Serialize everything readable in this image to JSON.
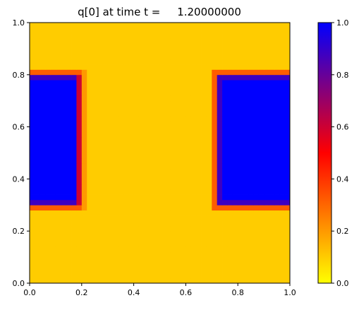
{
  "chart_data": {
    "type": "heatmap",
    "title": "q[0] at time t =     1.20000000",
    "xlabel": "",
    "ylabel": "",
    "xlim": [
      0.0,
      1.0
    ],
    "ylim": [
      0.0,
      1.0
    ],
    "xticks": [
      "0.0",
      "0.2",
      "0.4",
      "0.6",
      "0.8",
      "1.0"
    ],
    "yticks": [
      "0.0",
      "0.2",
      "0.4",
      "0.6",
      "0.8",
      "1.0"
    ],
    "grid": false,
    "colorbar": {
      "range": [
        0.0,
        1.0
      ],
      "ticks": [
        "0.0",
        "0.2",
        "0.4",
        "0.6",
        "0.8",
        "1.0"
      ],
      "colors": [
        "#ffff00",
        "#ff8000",
        "#ff0000",
        "#800080",
        "#0000ff"
      ]
    },
    "grid_size": [
      50,
      50
    ],
    "background_value": 0.1,
    "regions": [
      {
        "name": "left block",
        "x": [
          0.0,
          0.17
        ],
        "y": [
          0.32,
          0.78
        ],
        "value": 1.0,
        "fringe": [
          {
            "dx": 0.01,
            "value": 0.88
          },
          {
            "dx": 0.02,
            "value": 0.6
          },
          {
            "dx": 0.03,
            "value": 0.32
          },
          {
            "dx": 0.04,
            "value": 0.2
          }
        ]
      },
      {
        "name": "right block",
        "x": [
          0.74,
          1.0
        ],
        "y": [
          0.32,
          0.78
        ],
        "value": 1.0,
        "fringe": [
          {
            "dx": 0.01,
            "value": 0.88
          },
          {
            "dx": 0.02,
            "value": 0.6
          },
          {
            "dx": 0.03,
            "value": 0.32
          },
          {
            "dx": 0.04,
            "value": 0.2
          }
        ]
      }
    ]
  }
}
